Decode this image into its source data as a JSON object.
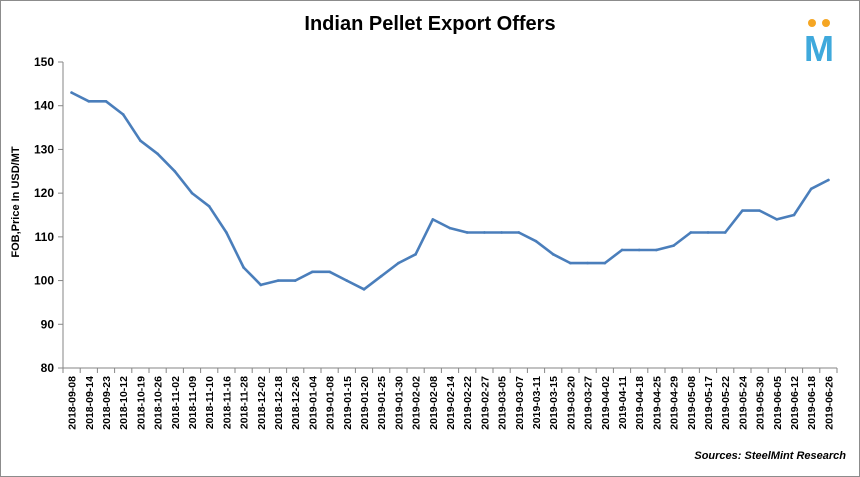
{
  "logo": {
    "letter": "M",
    "dot_color": "#f5a623",
    "letter_color": "#3fa9dc"
  },
  "source": "Sources: SteelMint Research",
  "chart_data": {
    "type": "line",
    "title": "Indian Pellet Export Offers",
    "ylabel": "FOB,Price In USD/MT",
    "xlabel": "",
    "ylim": [
      80,
      150
    ],
    "yticks": [
      80,
      90,
      100,
      110,
      120,
      130,
      140,
      150
    ],
    "grid": false,
    "legend": "none",
    "line_color": "#4a7ebb",
    "categories": [
      "2018-09-08",
      "2018-09-14",
      "2018-09-23",
      "2018-10-12",
      "2018-10-19",
      "2018-10-26",
      "2018-11-02",
      "2018-11-09",
      "2018-11-10",
      "2018-11-16",
      "2018-11-28",
      "2018-12-02",
      "2018-12-18",
      "2018-12-26",
      "2019-01-04",
      "2019-01-08",
      "2019-01-15",
      "2019-01-20",
      "2019-01-25",
      "2019-01-30",
      "2019-02-02",
      "2019-02-08",
      "2019-02-14",
      "2019-02-22",
      "2019-02-27",
      "2019-03-05",
      "2019-03-07",
      "2019-03-11",
      "2019-03-15",
      "2019-03-20",
      "2019-03-27",
      "2019-04-02",
      "2019-04-11",
      "2019-04-18",
      "2019-04-25",
      "2019-04-29",
      "2019-05-08",
      "2019-05-17",
      "2019-05-22",
      "2019-05-24",
      "2019-05-30",
      "2019-06-05",
      "2019-06-12",
      "2019-06-18",
      "2019-06-26"
    ],
    "series": [
      {
        "values": [
          143,
          141,
          141,
          138,
          132,
          129,
          125,
          120,
          117,
          111,
          103,
          99,
          100,
          100,
          102,
          102,
          100,
          98,
          101,
          104,
          106,
          114,
          112,
          111,
          111,
          111,
          111,
          109,
          106,
          104,
          104,
          104,
          107,
          107,
          107,
          108,
          111,
          111,
          111,
          116,
          116,
          114,
          115,
          121,
          123
        ]
      }
    ]
  }
}
